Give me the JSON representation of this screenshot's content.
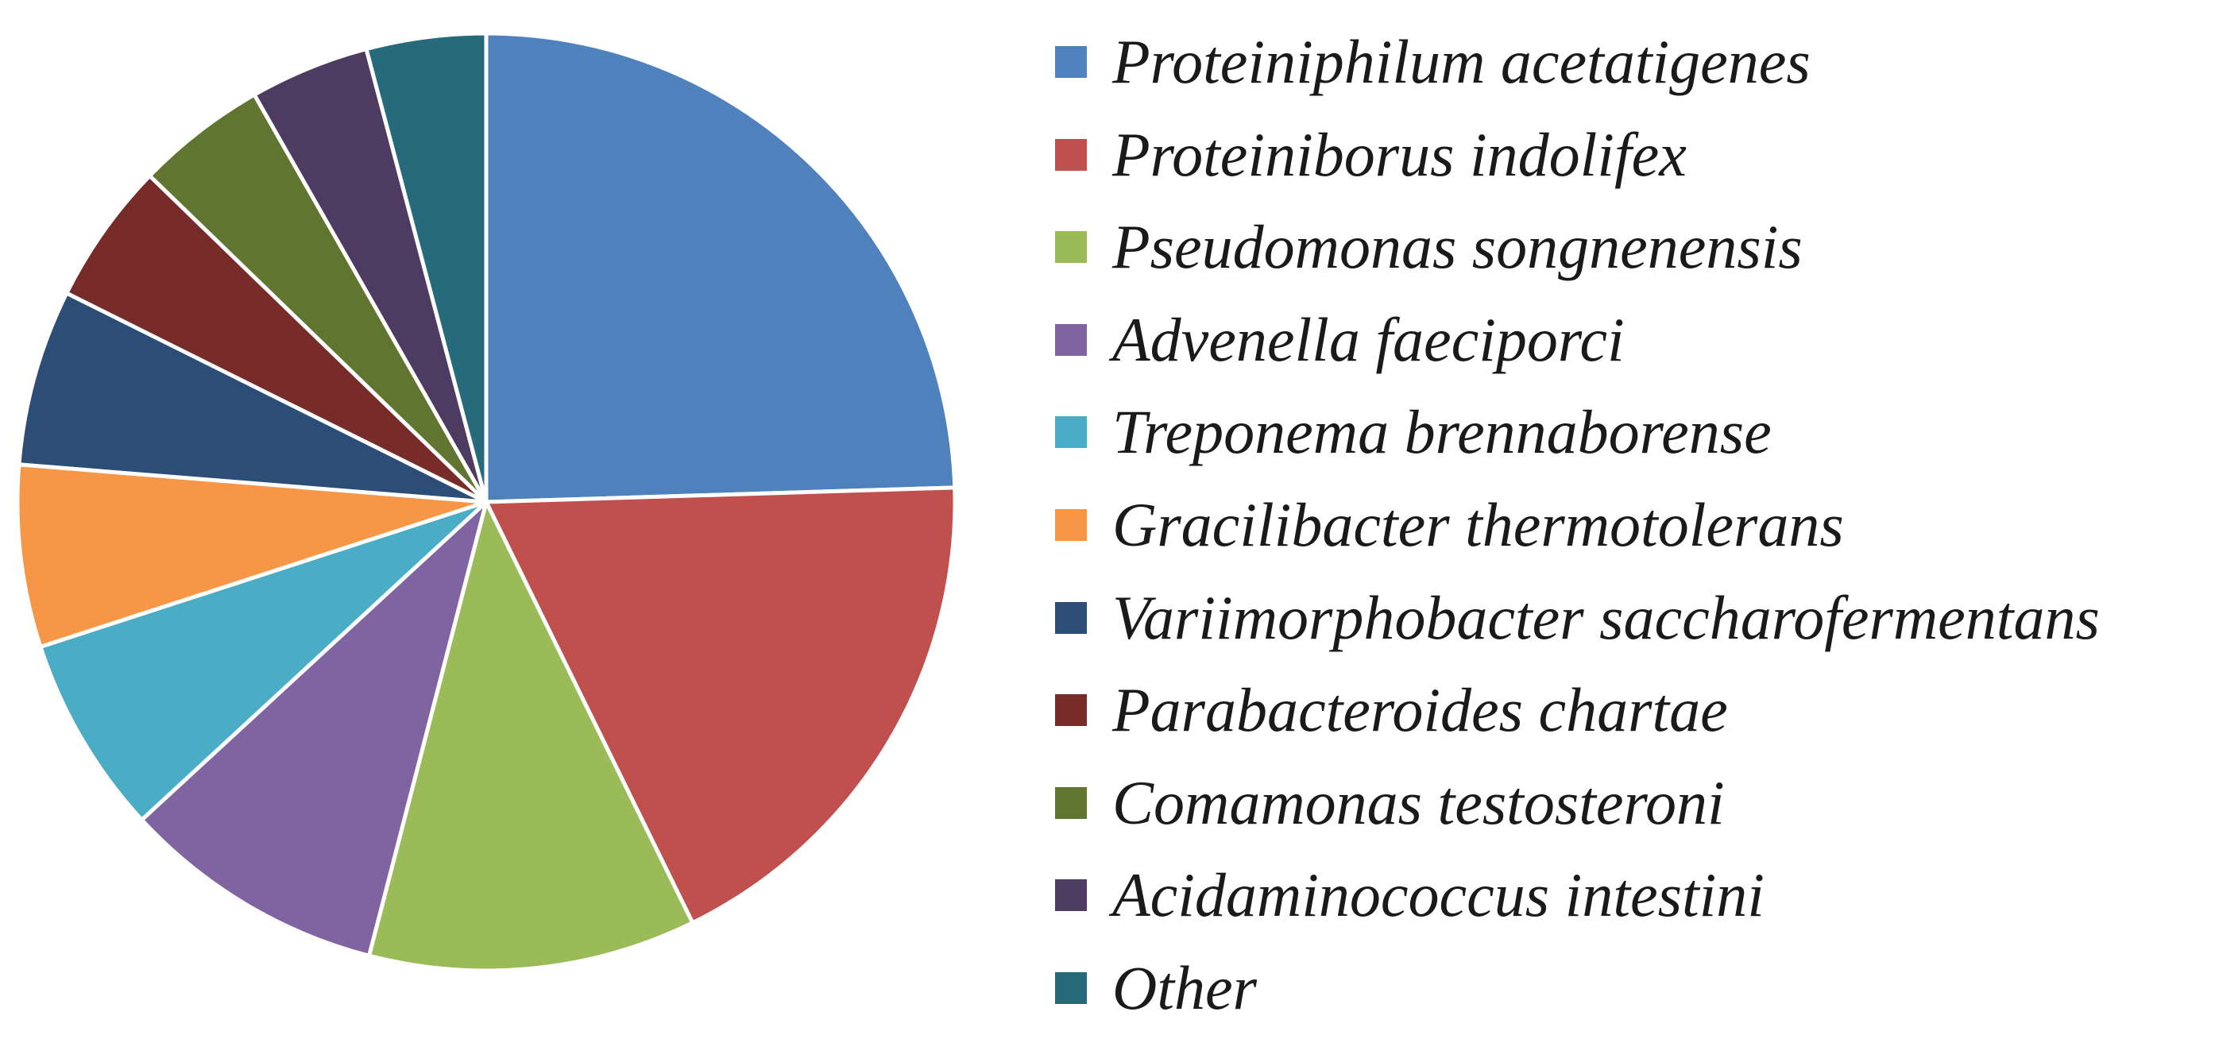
{
  "chart_data": {
    "type": "pie",
    "title": "",
    "legend_position": "right",
    "slices": [
      {
        "name": "Proteiniphilum acetatigenes",
        "value": 25.0,
        "color": "#4f81bd"
      },
      {
        "name": "Proteiniborus indolifex",
        "value": 18.6,
        "color": "#c0504d"
      },
      {
        "name": "Pseudomonas songnenensis",
        "value": 11.5,
        "color": "#9bbb59"
      },
      {
        "name": "Advenella faeciporci",
        "value": 9.3,
        "color": "#8064a2"
      },
      {
        "name": "Treponema brennaborense",
        "value": 7.0,
        "color": "#4bacc6"
      },
      {
        "name": "Gracilibacter thermotolerans",
        "value": 6.4,
        "color": "#f79646"
      },
      {
        "name": "Variimorphobacter saccharofermentans",
        "value": 6.2,
        "color": "#2c4d75"
      },
      {
        "name": "Parabacteroides chartae",
        "value": 5.0,
        "color": "#772c2a"
      },
      {
        "name": "Comamonas testosteroni",
        "value": 4.6,
        "color": "#5f7530"
      },
      {
        "name": "Acidaminococcus intestini",
        "value": 4.2,
        "color": "#4d3b62"
      },
      {
        "name": "Other",
        "value": 4.2,
        "color": "#276a7c"
      }
    ]
  }
}
